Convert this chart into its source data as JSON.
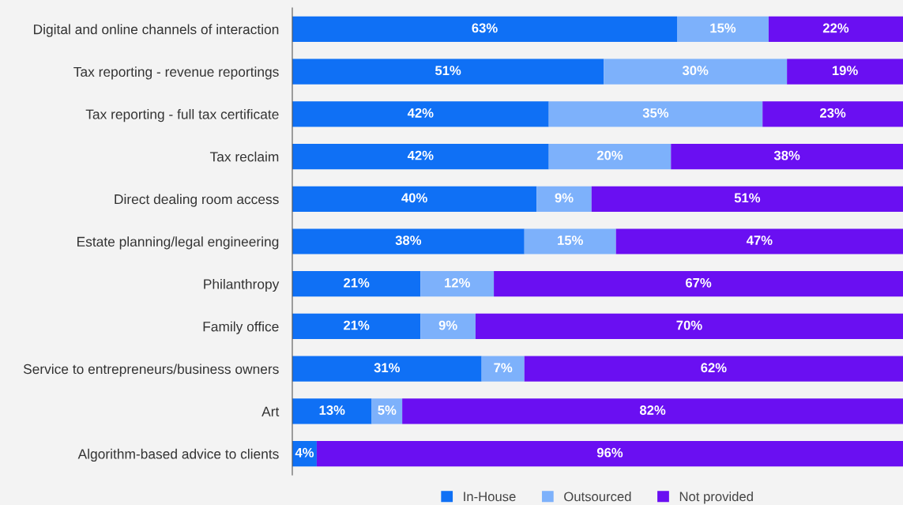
{
  "chart_data": {
    "type": "bar",
    "orientation": "horizontal",
    "stacked": true,
    "legend": "bottom",
    "grid": false,
    "categories": [
      "Digital and online channels of interaction",
      "Tax reporting - revenue reportings",
      "Tax reporting - full tax certificate",
      "Tax reclaim",
      "Direct dealing room access",
      "Estate planning/legal engineering",
      "Philanthropy",
      "Family office",
      "Service to entrepreneurs/business owners",
      "Art",
      "Algorithm-based advice to clients"
    ],
    "series": [
      {
        "name": "In-House",
        "color": "#0f70f5",
        "values": [
          63,
          51,
          42,
          42,
          40,
          38,
          21,
          21,
          31,
          13,
          4
        ],
        "value_labels": [
          "63%",
          "51%",
          "42%",
          "42%",
          "40%",
          "38%",
          "21%",
          "21%",
          "31%",
          "13%",
          "4%"
        ]
      },
      {
        "name": "Outsourced",
        "color": "#7db1fb",
        "values": [
          15,
          30,
          35,
          20,
          9,
          15,
          12,
          9,
          7,
          5,
          0
        ],
        "value_labels": [
          "15%",
          "30%",
          "35%",
          "20%",
          "9%",
          "15%",
          "12%",
          "9%",
          "7%",
          "5%",
          null
        ]
      },
      {
        "name": "Not provided",
        "color": "#6a0ff2",
        "values": [
          22,
          19,
          23,
          38,
          51,
          47,
          67,
          70,
          62,
          82,
          96
        ],
        "value_labels": [
          "22%",
          "19%",
          "23%",
          "38%",
          "51%",
          "47%",
          "67%",
          "70%",
          "62%",
          "82%",
          "96%"
        ]
      }
    ]
  }
}
